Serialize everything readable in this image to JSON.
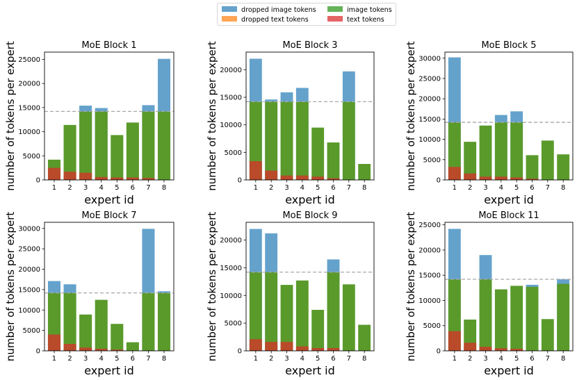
{
  "colors": {
    "dropped_image": "#1f77b4",
    "dropped_text": "#ff7f0e",
    "image": "#2ca02c",
    "text": "#d62728",
    "dropped_image_display": "#64a2cc",
    "dropped_text_display": "#ffa556",
    "image_display": "#66b35a",
    "text_display": "#e36464",
    "image_over_text": "#5a9a2b",
    "text_over_text": "#b94a2a",
    "capacity_line": "#a8a8a8"
  },
  "legend": {
    "items": [
      {
        "label": "dropped image tokens",
        "color_key": "dropped_image_display"
      },
      {
        "label": "image tokens",
        "color_key": "image_display"
      },
      {
        "label": "dropped text tokens",
        "color_key": "dropped_text_display"
      },
      {
        "label": "text tokens",
        "color_key": "text_display"
      }
    ]
  },
  "chart_data": [
    {
      "type": "bar",
      "title": "MoE Block 1",
      "xlabel": "expert id",
      "ylabel": "number of tokens per expert",
      "categories": [
        "1",
        "2",
        "3",
        "4",
        "5",
        "6",
        "7",
        "8"
      ],
      "ylim": [
        0,
        26500
      ],
      "capacity": 14200,
      "yticks": [
        0,
        5000,
        10000,
        15000,
        20000,
        25000
      ],
      "ytick_labels": [
        "0",
        "5000",
        "10000",
        "15000",
        "20000",
        "25000"
      ],
      "series": [
        {
          "name": "dropped image tokens",
          "values": [
            4200,
            11400,
            15400,
            14900,
            9300,
            11900,
            15500,
            25100
          ]
        },
        {
          "name": "image tokens",
          "values": [
            4200,
            11400,
            14200,
            14200,
            9300,
            11900,
            14200,
            14200
          ]
        },
        {
          "name": "text tokens",
          "values": [
            2500,
            1700,
            1500,
            600,
            500,
            500,
            400,
            0
          ]
        }
      ]
    },
    {
      "type": "bar",
      "title": "MoE Block 3",
      "xlabel": "expert id",
      "ylabel": "number of tokens per expert",
      "categories": [
        "1",
        "2",
        "3",
        "4",
        "5",
        "6",
        "7",
        "8"
      ],
      "ylim": [
        0,
        23200
      ],
      "capacity": 14200,
      "yticks": [
        0,
        5000,
        10000,
        15000,
        20000
      ],
      "ytick_labels": [
        "0",
        "5000",
        "10000",
        "15000",
        "20000"
      ],
      "series": [
        {
          "name": "dropped image tokens",
          "values": [
            22000,
            14600,
            15900,
            16700,
            9500,
            6800,
            19700,
            2900
          ]
        },
        {
          "name": "image tokens",
          "values": [
            14200,
            14200,
            14200,
            14200,
            9500,
            6800,
            14200,
            2900
          ]
        },
        {
          "name": "text tokens",
          "values": [
            3400,
            1700,
            800,
            800,
            600,
            300,
            0,
            0
          ]
        }
      ]
    },
    {
      "type": "bar",
      "title": "MoE Block 5",
      "xlabel": "expert id",
      "ylabel": "number of tokens per expert",
      "categories": [
        "1",
        "2",
        "3",
        "4",
        "5",
        "6",
        "7",
        "8"
      ],
      "ylim": [
        0,
        31500
      ],
      "capacity": 14200,
      "yticks": [
        0,
        5000,
        10000,
        15000,
        20000,
        25000,
        30000
      ],
      "ytick_labels": [
        "0",
        "5000",
        "10000",
        "15000",
        "20000",
        "25000",
        "30000"
      ],
      "series": [
        {
          "name": "dropped image tokens",
          "values": [
            30200,
            9400,
            13400,
            16000,
            16900,
            6100,
            9700,
            6300
          ]
        },
        {
          "name": "image tokens",
          "values": [
            14200,
            9400,
            13400,
            14200,
            14200,
            6100,
            9700,
            6300
          ]
        },
        {
          "name": "text tokens",
          "values": [
            3200,
            1600,
            800,
            800,
            600,
            300,
            0,
            0
          ]
        }
      ]
    },
    {
      "type": "bar",
      "title": "MoE Block 7",
      "xlabel": "expert id",
      "ylabel": "number of tokens per expert",
      "categories": [
        "1",
        "2",
        "3",
        "4",
        "5",
        "6",
        "7",
        "8"
      ],
      "ylim": [
        0,
        31500
      ],
      "capacity": 14200,
      "yticks": [
        0,
        5000,
        10000,
        15000,
        20000,
        25000,
        30000
      ],
      "ytick_labels": [
        "0",
        "5000",
        "10000",
        "15000",
        "20000",
        "25000",
        "30000"
      ],
      "series": [
        {
          "name": "dropped image tokens",
          "values": [
            17100,
            16300,
            8900,
            12500,
            6600,
            2100,
            29900,
            14600
          ]
        },
        {
          "name": "image tokens",
          "values": [
            14200,
            14200,
            8900,
            12500,
            6600,
            2100,
            14200,
            14200
          ]
        },
        {
          "name": "text tokens",
          "values": [
            4000,
            1700,
            800,
            500,
            300,
            0,
            0,
            0
          ]
        }
      ]
    },
    {
      "type": "bar",
      "title": "MoE Block 9",
      "xlabel": "expert id",
      "ylabel": "number of tokens per expert",
      "categories": [
        "1",
        "2",
        "3",
        "4",
        "5",
        "6",
        "7",
        "8"
      ],
      "ylim": [
        0,
        23200
      ],
      "capacity": 14200,
      "yticks": [
        0,
        5000,
        10000,
        15000,
        20000
      ],
      "ytick_labels": [
        "0",
        "5000",
        "10000",
        "15000",
        "20000"
      ],
      "series": [
        {
          "name": "dropped image tokens",
          "values": [
            22000,
            21200,
            11900,
            12700,
            7400,
            16500,
            12000,
            4700
          ]
        },
        {
          "name": "image tokens",
          "values": [
            14200,
            14200,
            11900,
            12700,
            7400,
            14200,
            12000,
            4700
          ]
        },
        {
          "name": "text tokens",
          "values": [
            2100,
            1600,
            1600,
            800,
            500,
            500,
            0,
            0
          ]
        }
      ]
    },
    {
      "type": "bar",
      "title": "MoE Block 11",
      "xlabel": "expert id",
      "ylabel": "number of tokens per expert",
      "categories": [
        "1",
        "2",
        "3",
        "4",
        "5",
        "6",
        "7",
        "8"
      ],
      "ylim": [
        0,
        25500
      ],
      "capacity": 14200,
      "yticks": [
        0,
        5000,
        10000,
        15000,
        20000,
        25000
      ],
      "ytick_labels": [
        "0",
        "5000",
        "10000",
        "15000",
        "20000",
        "25000"
      ],
      "series": [
        {
          "name": "dropped image tokens",
          "values": [
            24200,
            6200,
            19000,
            12200,
            12900,
            13100,
            6300,
            14200
          ]
        },
        {
          "name": "image tokens",
          "values": [
            14200,
            6200,
            14200,
            12200,
            12900,
            12700,
            6300,
            13300
          ]
        },
        {
          "name": "text tokens",
          "values": [
            3900,
            1600,
            800,
            500,
            400,
            0,
            0,
            0
          ]
        }
      ]
    }
  ]
}
